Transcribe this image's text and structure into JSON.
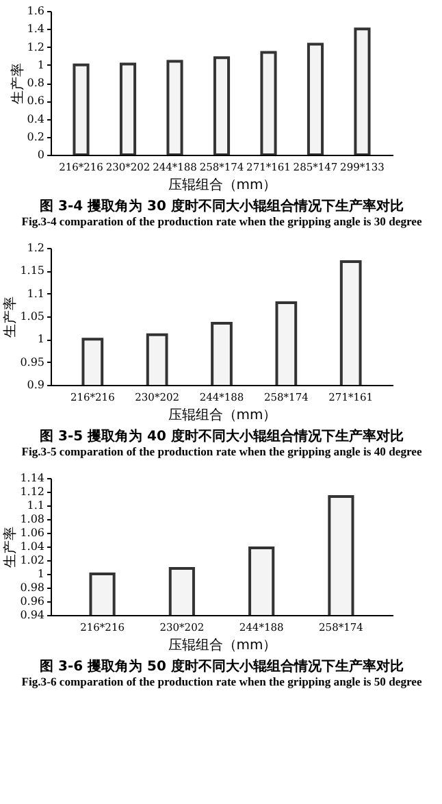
{
  "chart_data": [
    {
      "type": "bar",
      "title": "图 3-4  攫取角为 30 度时不同大小辊组合情况下生产率对比",
      "subtitle": "Fig.3-4 comparation of the production rate when the gripping angle is 30 degree",
      "xlabel": "压辊组合（mm）",
      "ylabel": "生产率",
      "categories": [
        "216*216",
        "230*202",
        "244*188",
        "258*174",
        "271*161",
        "285*147",
        "299*133"
      ],
      "values": [
        1.0,
        1.01,
        1.04,
        1.08,
        1.14,
        1.23,
        1.4
      ],
      "color": "#f4f4f4",
      "ylim": [
        0,
        1.6
      ],
      "yticks": [
        0,
        0.2,
        0.4,
        0.6,
        0.8,
        1,
        1.2,
        1.4,
        1.6
      ],
      "grid": false,
      "legend": false
    },
    {
      "type": "bar",
      "title": "图 3-5  攫取角为 40 度时不同大小辊组合情况下生产率对比",
      "subtitle": "Fig.3-5 comparation of the production rate when the gripping angle is 40 degree",
      "xlabel": "压辊组合（mm）",
      "ylabel": "生产率",
      "categories": [
        "216*216",
        "230*202",
        "244*188",
        "258*174",
        "271*161"
      ],
      "values": [
        1.0,
        1.01,
        1.035,
        1.08,
        1.17
      ],
      "color": "#f4f4f4",
      "ylim": [
        0.9,
        1.2
      ],
      "yticks": [
        0.9,
        0.95,
        1,
        1.05,
        1.1,
        1.15,
        1.2
      ],
      "grid": false,
      "legend": false
    },
    {
      "type": "bar",
      "title": "图 3-6  攫取角为 50 度时不同大小辊组合情况下生产率对比",
      "subtitle": "Fig.3-6 comparation of the production rate when the gripping angle is 50 degree",
      "xlabel": "压辊组合（mm）",
      "ylabel": "生产率",
      "categories": [
        "216*216",
        "230*202",
        "244*188",
        "258*174"
      ],
      "values": [
        1.0,
        1.008,
        1.038,
        1.113
      ],
      "color": "#f4f4f4",
      "ylim": [
        0.94,
        1.14
      ],
      "yticks": [
        0.94,
        0.96,
        0.98,
        1,
        1.02,
        1.04,
        1.06,
        1.08,
        1.1,
        1.12,
        1.14
      ],
      "grid": false,
      "legend": false
    }
  ]
}
